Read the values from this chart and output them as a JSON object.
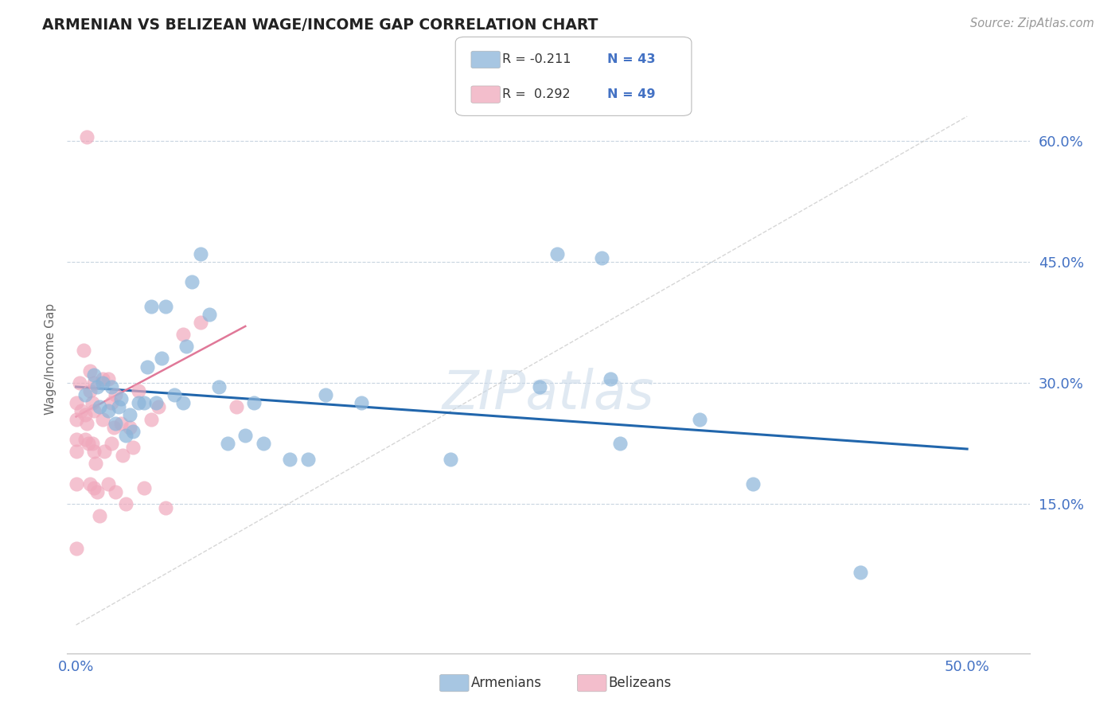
{
  "title": "ARMENIAN VS BELIZEAN WAGE/INCOME GAP CORRELATION CHART",
  "source": "Source: ZipAtlas.com",
  "ylabel": "Wage/Income Gap",
  "ytick_values": [
    0.15,
    0.3,
    0.45,
    0.6
  ],
  "ytick_labels": [
    "15.0%",
    "30.0%",
    "45.0%",
    "60.0%"
  ],
  "xtick_values": [
    0.0,
    0.5
  ],
  "xtick_labels": [
    "0.0%",
    "50.0%"
  ],
  "xlim": [
    -0.005,
    0.535
  ],
  "ylim": [
    -0.035,
    0.695
  ],
  "color_armenian": "#8ab4d9",
  "color_belizean": "#f0a8bc",
  "color_line_armenian": "#2166ac",
  "color_line_belizean": "#e07898",
  "watermark": "ZIPatlas",
  "armenian_x": [
    0.005,
    0.01,
    0.012,
    0.013,
    0.015,
    0.018,
    0.02,
    0.022,
    0.024,
    0.025,
    0.028,
    0.03,
    0.032,
    0.035,
    0.038,
    0.04,
    0.042,
    0.045,
    0.048,
    0.05,
    0.055,
    0.06,
    0.062,
    0.065,
    0.07,
    0.075,
    0.08,
    0.085,
    0.095,
    0.1,
    0.105,
    0.12,
    0.13,
    0.14,
    0.16,
    0.21,
    0.26,
    0.3,
    0.305,
    0.35,
    0.38,
    0.44,
    0.27,
    0.295
  ],
  "armenian_y": [
    0.285,
    0.31,
    0.295,
    0.27,
    0.3,
    0.265,
    0.295,
    0.25,
    0.27,
    0.28,
    0.235,
    0.26,
    0.24,
    0.275,
    0.275,
    0.32,
    0.395,
    0.275,
    0.33,
    0.395,
    0.285,
    0.275,
    0.345,
    0.425,
    0.46,
    0.385,
    0.295,
    0.225,
    0.235,
    0.275,
    0.225,
    0.205,
    0.205,
    0.285,
    0.275,
    0.205,
    0.295,
    0.305,
    0.225,
    0.255,
    0.175,
    0.065,
    0.46,
    0.455
  ],
  "belizean_x": [
    0.0,
    0.0,
    0.0,
    0.0,
    0.0,
    0.0,
    0.002,
    0.003,
    0.005,
    0.005,
    0.006,
    0.007,
    0.008,
    0.008,
    0.008,
    0.009,
    0.009,
    0.01,
    0.01,
    0.01,
    0.01,
    0.011,
    0.012,
    0.013,
    0.015,
    0.015,
    0.016,
    0.018,
    0.018,
    0.02,
    0.02,
    0.021,
    0.022,
    0.022,
    0.025,
    0.026,
    0.028,
    0.03,
    0.032,
    0.035,
    0.038,
    0.042,
    0.046,
    0.05,
    0.06,
    0.07,
    0.09,
    0.004,
    0.006
  ],
  "belizean_y": [
    0.275,
    0.255,
    0.23,
    0.215,
    0.175,
    0.095,
    0.3,
    0.265,
    0.26,
    0.23,
    0.25,
    0.225,
    0.315,
    0.29,
    0.175,
    0.275,
    0.225,
    0.3,
    0.265,
    0.215,
    0.17,
    0.2,
    0.165,
    0.135,
    0.305,
    0.255,
    0.215,
    0.305,
    0.175,
    0.275,
    0.225,
    0.245,
    0.285,
    0.165,
    0.25,
    0.21,
    0.15,
    0.245,
    0.22,
    0.29,
    0.17,
    0.255,
    0.27,
    0.145,
    0.36,
    0.375,
    0.27,
    0.34,
    0.605
  ],
  "arm_line_x": [
    0.0,
    0.5
  ],
  "arm_line_y": [
    0.295,
    0.218
  ],
  "bel_line_x": [
    0.0,
    0.095
  ],
  "bel_line_y": [
    0.258,
    0.37
  ],
  "diag_line_x": [
    0.0,
    0.5
  ],
  "diag_line_y": [
    0.0,
    0.63
  ]
}
